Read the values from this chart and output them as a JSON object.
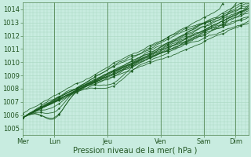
{
  "xlabel": "Pression niveau de la mer( hPa )",
  "ylim": [
    1004.5,
    1014.5
  ],
  "yticks": [
    1005,
    1006,
    1007,
    1008,
    1009,
    1010,
    1011,
    1012,
    1013,
    1014
  ],
  "xtick_labels": [
    "Mer",
    "Lun",
    "Jeu",
    "Ven",
    "Sam",
    "Dim"
  ],
  "xtick_positions": [
    0,
    0.75,
    2.0,
    3.25,
    4.25,
    5.0
  ],
  "xlim": [
    0,
    5.3
  ],
  "background_color": "#c8ece0",
  "grid_color": "#a8d8c0",
  "line_color": "#1a5c20",
  "tick_color": "#336633",
  "label_color": "#225522"
}
